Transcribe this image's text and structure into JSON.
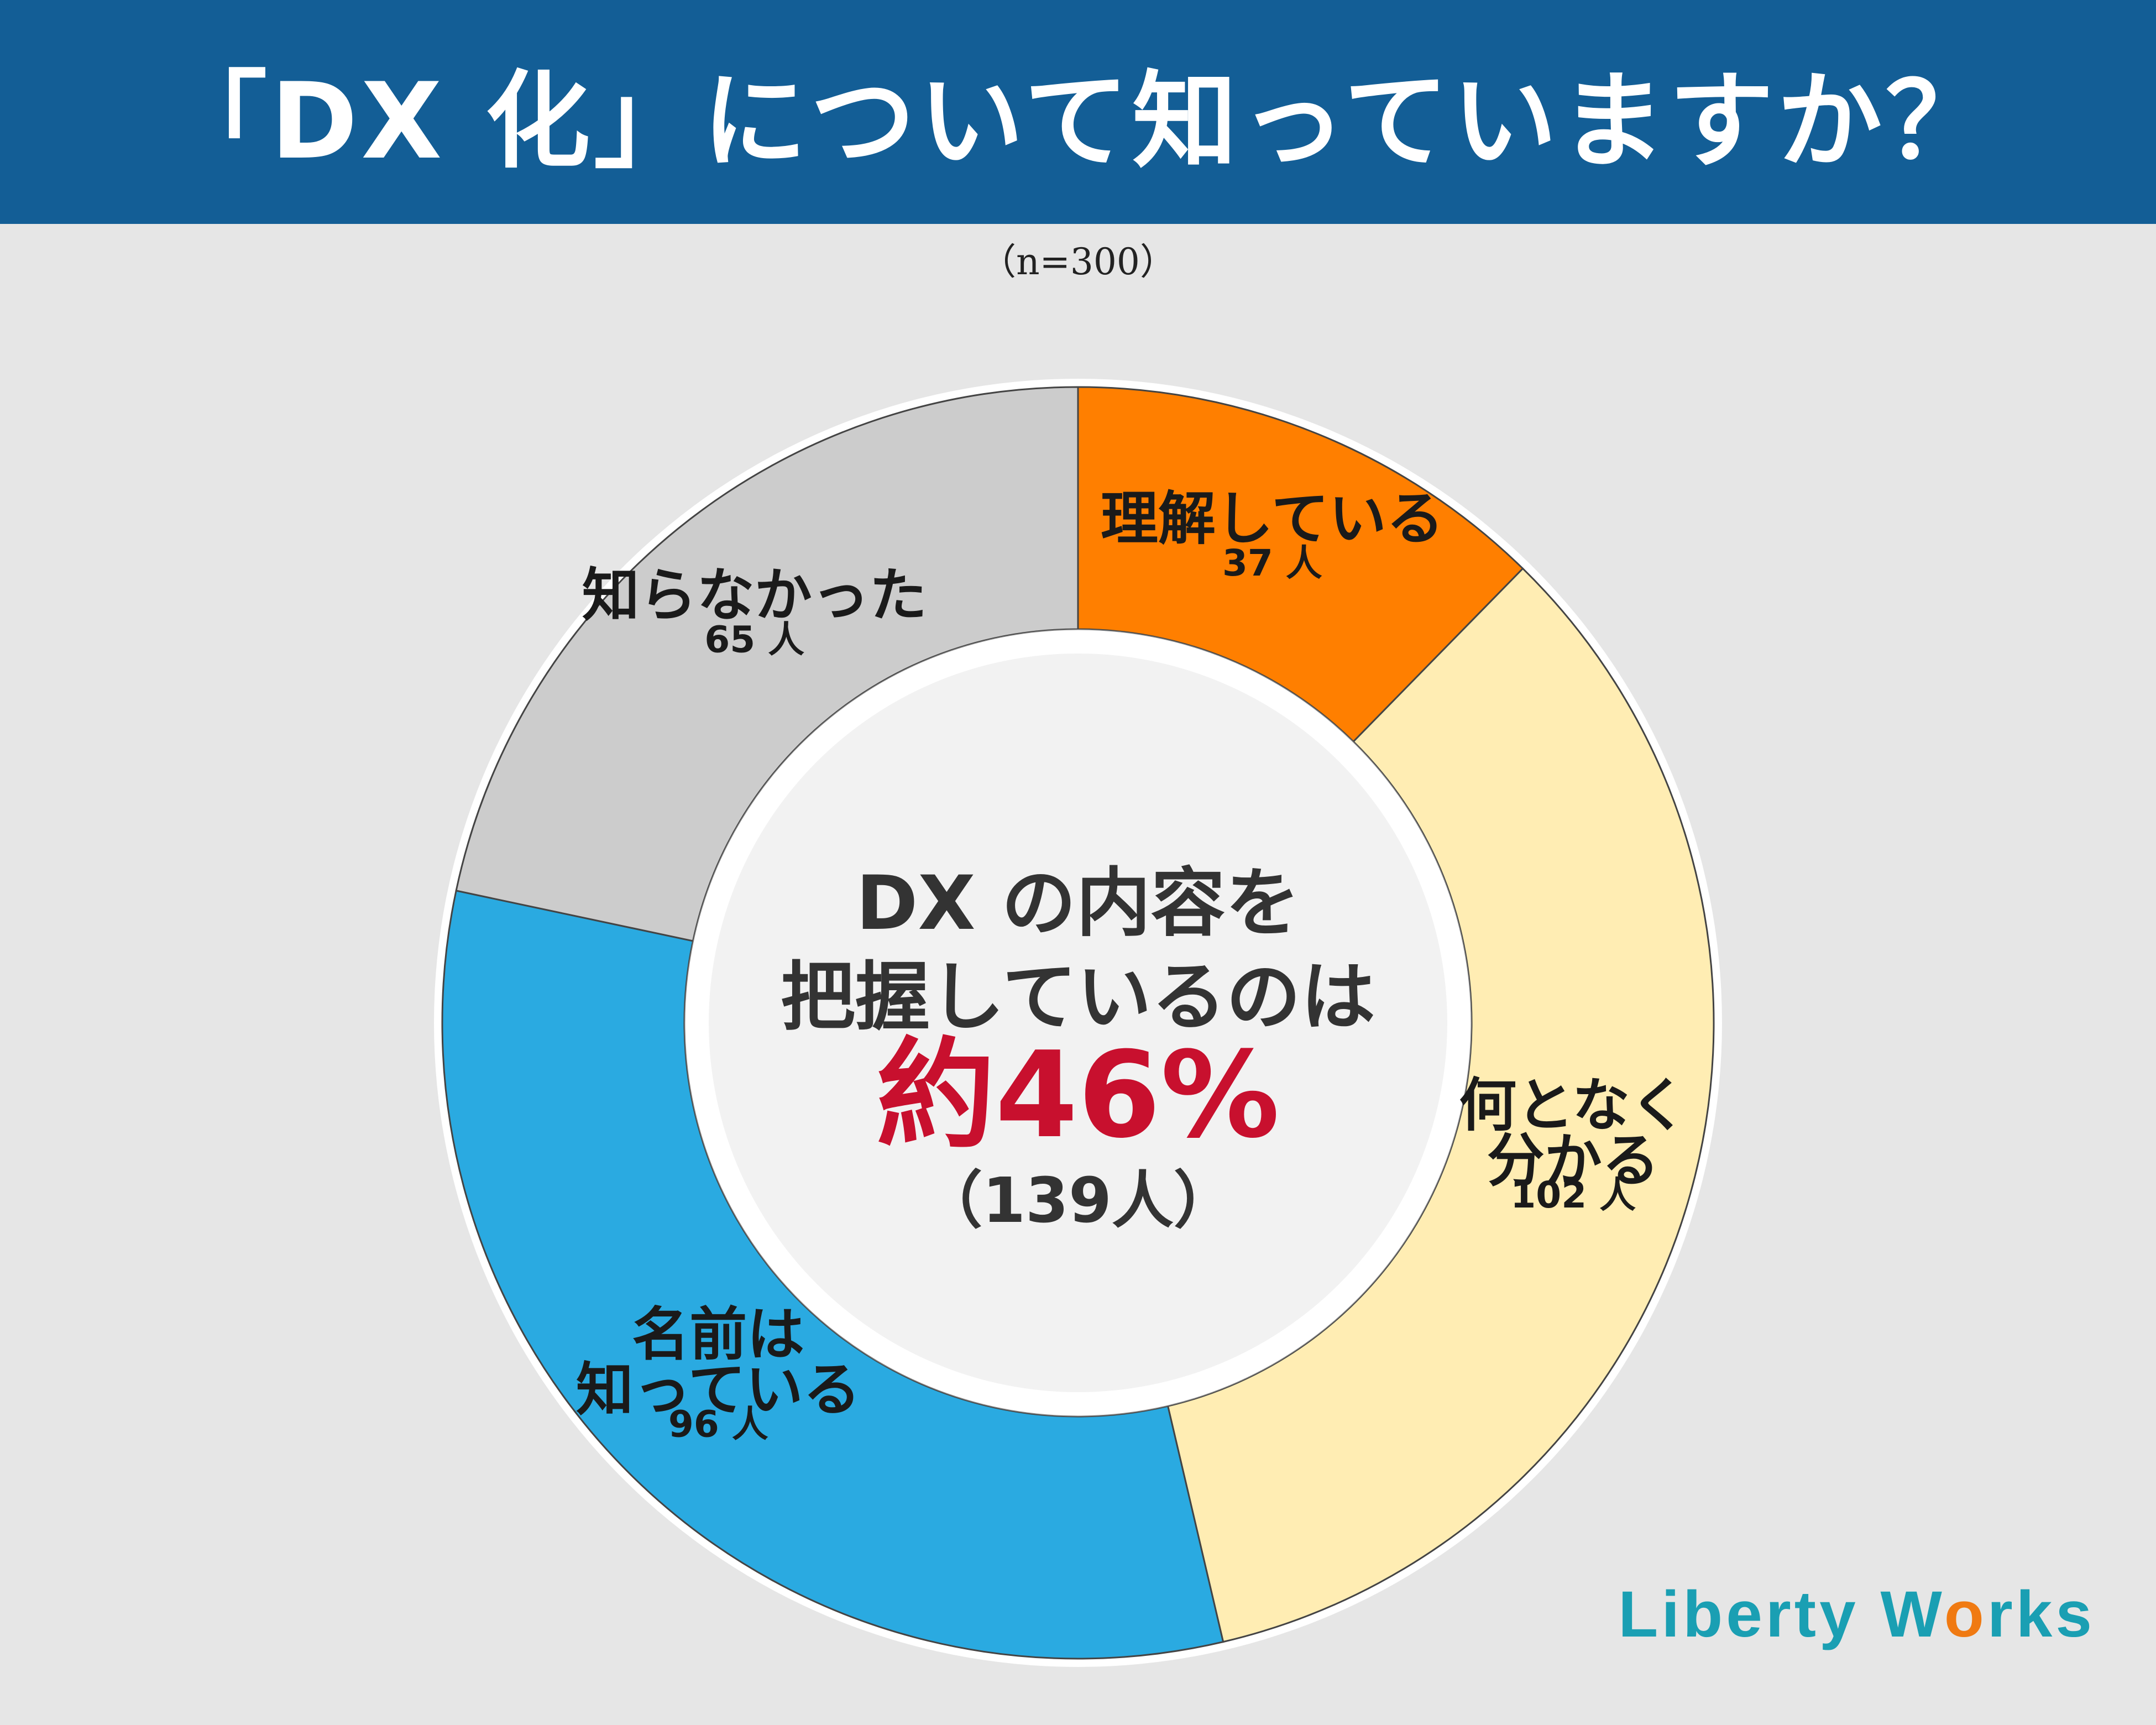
{
  "header": {
    "title": "「DX 化」について知っていますか？"
  },
  "sample_note": "（n=300）",
  "chart_data": {
    "type": "pie",
    "variant": "donut",
    "title": "「DX 化」について知っていますか？",
    "slices": [
      {
        "label_lines": [
          "理解している"
        ],
        "value": 37,
        "count_label": "37 人",
        "color": "#ff7f00"
      },
      {
        "label_lines": [
          "何となく",
          "分かる"
        ],
        "value": 102,
        "count_label": "102 人",
        "color": "#ffedb3"
      },
      {
        "label_lines": [
          "名前は",
          "知っている"
        ],
        "value": 96,
        "count_label": "96 人",
        "color": "#2aaae1"
      },
      {
        "label_lines": [
          "知らなかった"
        ],
        "value": 65,
        "count_label": "65 人",
        "color": "#cccccc"
      }
    ],
    "center": {
      "line1": "DX の内容を",
      "line2": "把握しているのは",
      "highlight": "約46%",
      "count": "（139人）",
      "highlight_color": "#c8102e"
    }
  },
  "logo": {
    "part1": "Liberty W",
    "accent": "o",
    "part2": "rks"
  }
}
